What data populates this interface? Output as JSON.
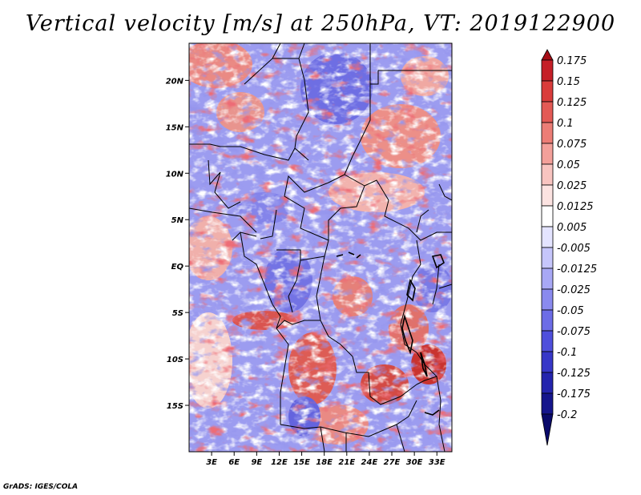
{
  "title": "Vertical velocity [m/s] at 250hPa, VT: 2019122900",
  "credit": "GrADS: IGES/COLA",
  "map": {
    "lat_range": [
      -20,
      24
    ],
    "lon_range": [
      0,
      35
    ],
    "lat_ticks": [
      {
        "value": 20,
        "label": "20N"
      },
      {
        "value": 15,
        "label": "15N"
      },
      {
        "value": 10,
        "label": "10N"
      },
      {
        "value": 5,
        "label": "5N"
      },
      {
        "value": 0,
        "label": "EQ"
      },
      {
        "value": -5,
        "label": "5S"
      },
      {
        "value": -10,
        "label": "10S"
      },
      {
        "value": -15,
        "label": "15S"
      }
    ],
    "lon_ticks": [
      {
        "value": 3,
        "label": "3E"
      },
      {
        "value": 6,
        "label": "6E"
      },
      {
        "value": 9,
        "label": "9E"
      },
      {
        "value": 12,
        "label": "12E"
      },
      {
        "value": 15,
        "label": "15E"
      },
      {
        "value": 18,
        "label": "18E"
      },
      {
        "value": 21,
        "label": "21E"
      },
      {
        "value": 24,
        "label": "24E"
      },
      {
        "value": 27,
        "label": "27E"
      },
      {
        "value": 30,
        "label": "30E"
      },
      {
        "value": 33,
        "label": "33E"
      }
    ]
  },
  "colorbar": {
    "labels": [
      "0.175",
      "0.15",
      "0.125",
      "0.1",
      "0.075",
      "0.05",
      "0.025",
      "0.0125",
      "0.005",
      "-0.005",
      "-0.0125",
      "-0.025",
      "-0.05",
      "-0.075",
      "-0.1",
      "-0.125",
      "-0.175",
      "-0.2"
    ],
    "colors": [
      "#a50d16",
      "#c51f27",
      "#d93c3b",
      "#e35a55",
      "#ec7d76",
      "#f3a09a",
      "#f8c4c0",
      "#fce3e1",
      "#ffffff",
      "#e4e4ff",
      "#c6c6fb",
      "#a8a8f5",
      "#8a8aee",
      "#6c6ce6",
      "#4f4fdc",
      "#3737c8",
      "#2424ad",
      "#15158c",
      "#0a0a6a"
    ]
  }
}
